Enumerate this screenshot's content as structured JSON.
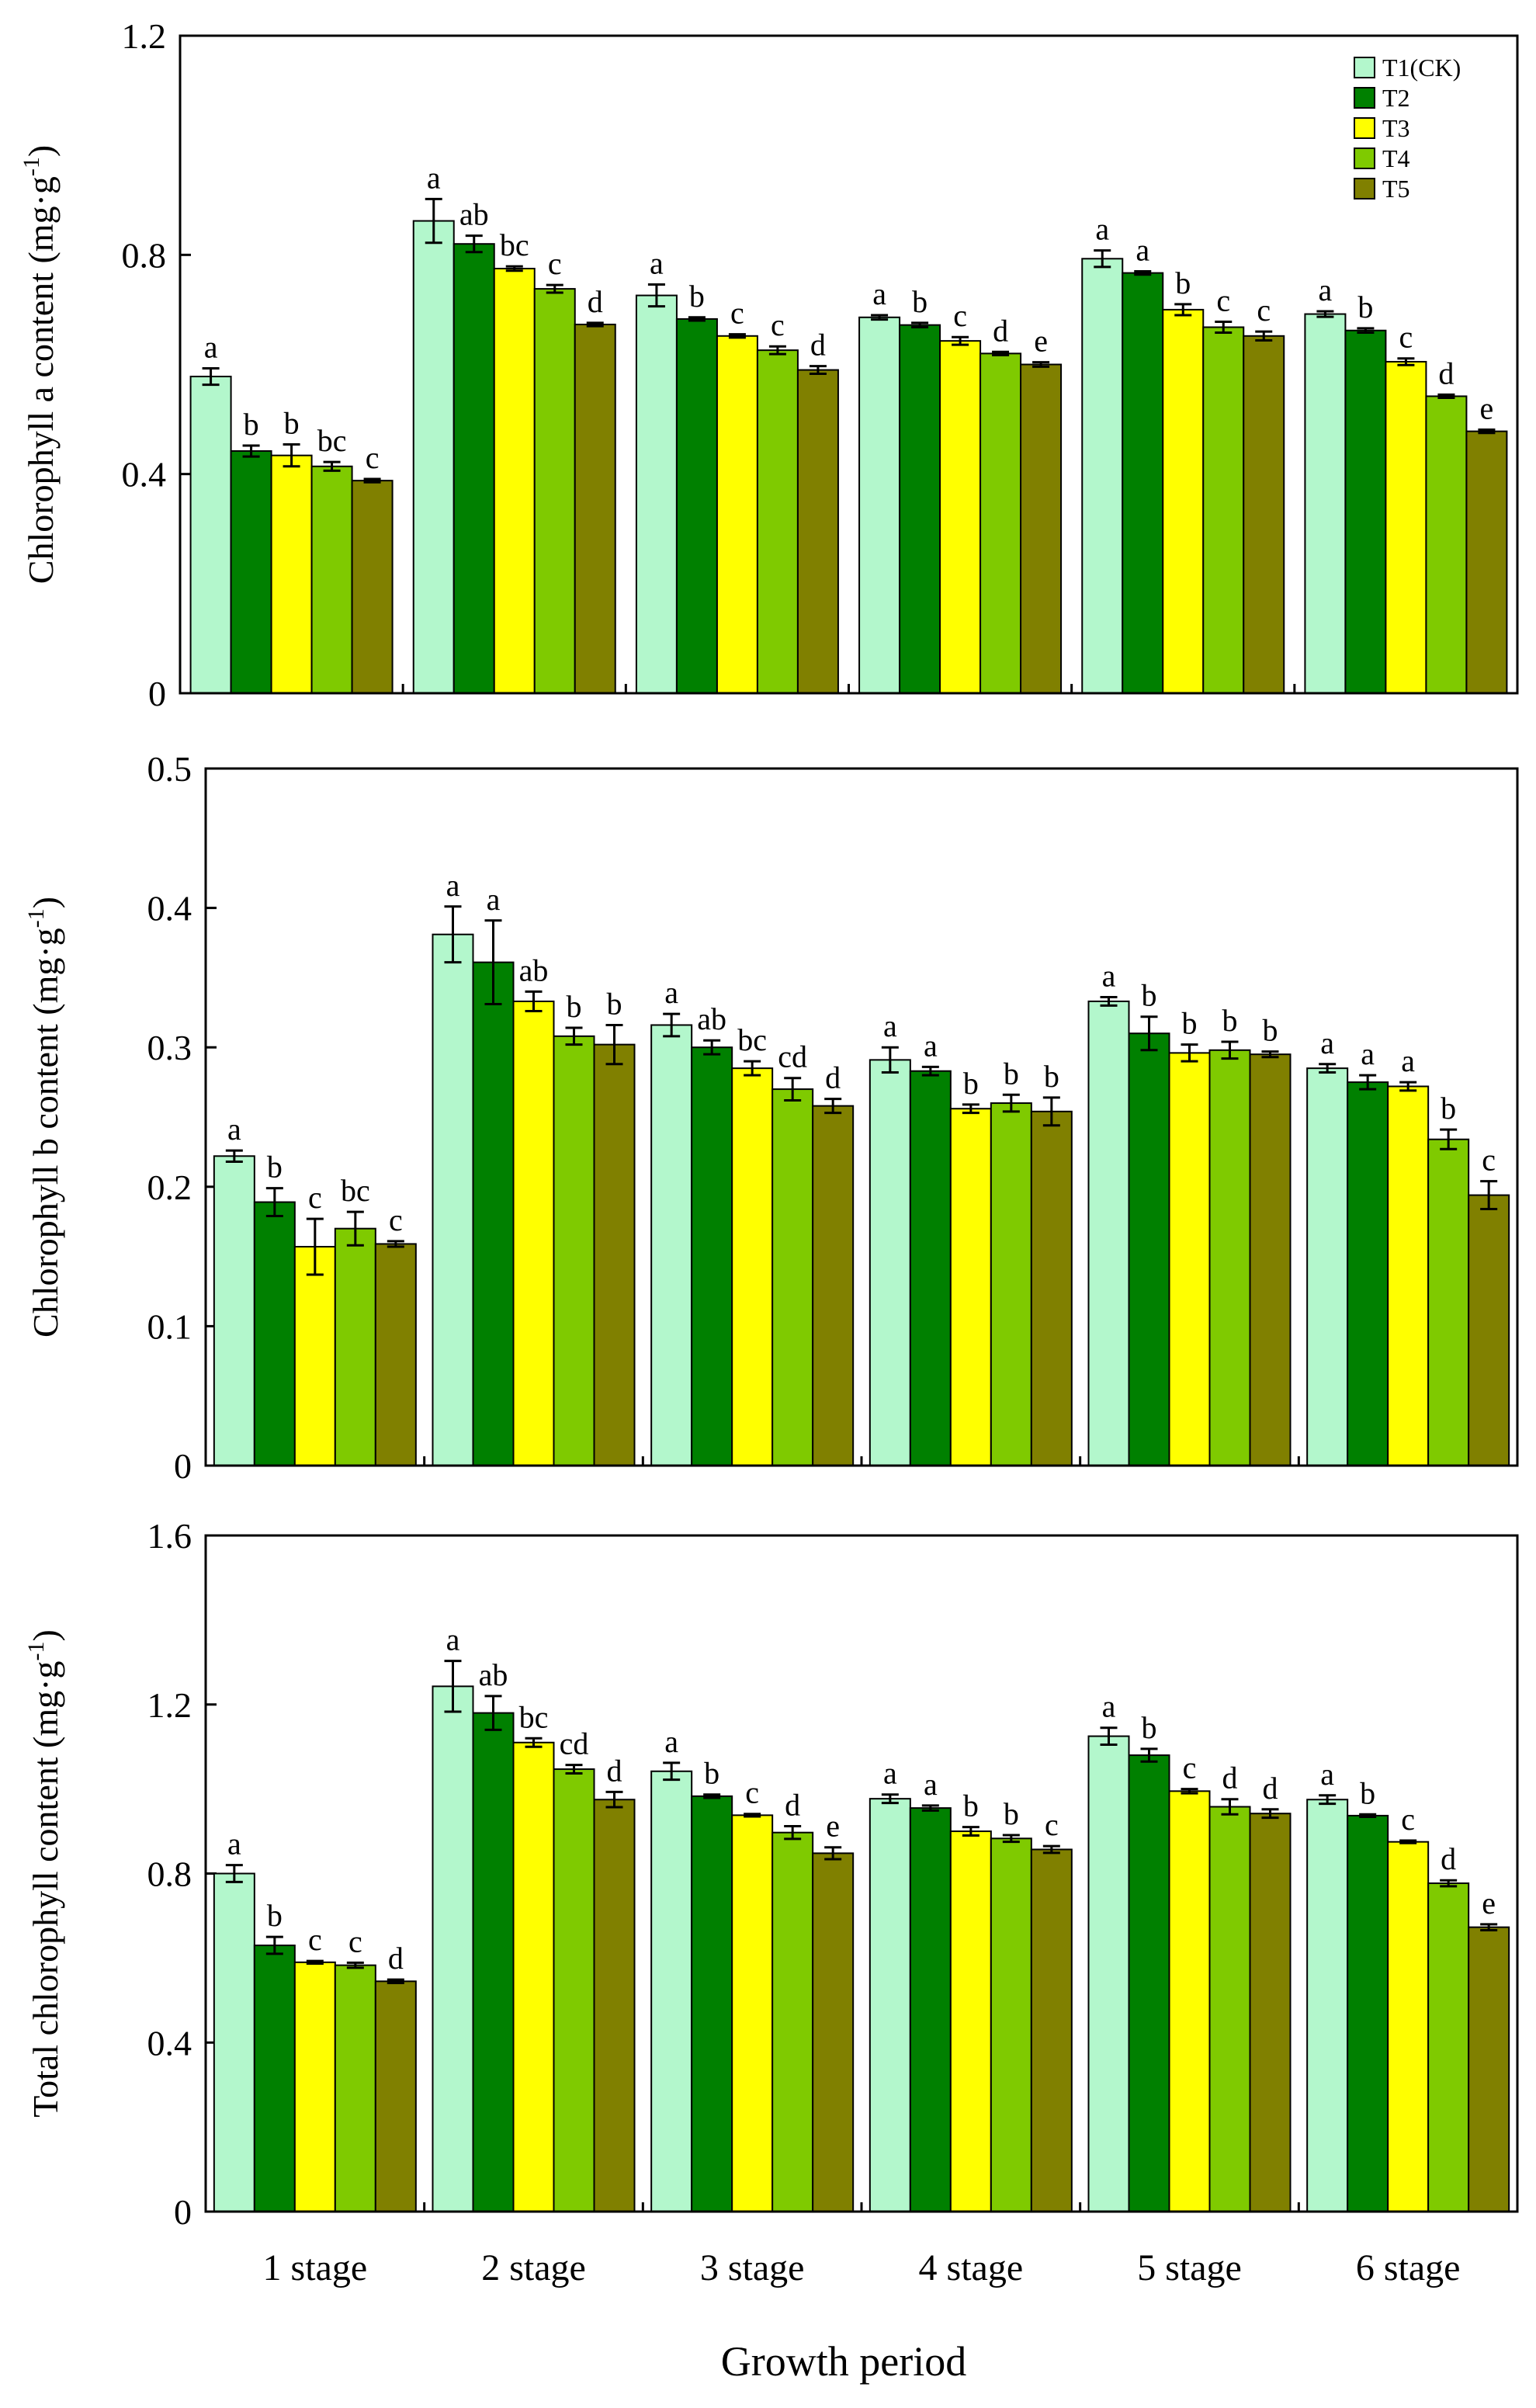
{
  "colors": {
    "T1(CK)": "#b3f7cc",
    "T2": "#008000",
    "T3": "#ffff00",
    "T4": "#7fca00",
    "T5": "#808000",
    "axis": "#000000",
    "error_bar": "#000000"
  },
  "x_axis_title": "Growth period",
  "chart_data": [
    {
      "type": "bar",
      "ylabel": "Chlorophyll a content",
      "yunit": "(mg·g-1)",
      "ylim": [
        0,
        1.2
      ],
      "yticks": [
        "0",
        "0.4",
        "0.8",
        "1.2"
      ],
      "legend": [
        "T1(CK)",
        "T2",
        "T3",
        "T4",
        "T5"
      ],
      "legend_position": "top-right",
      "categories": [
        "1 stage",
        "2 stage",
        "3 stage",
        "4 stage",
        "5 stage",
        "6 stage"
      ],
      "series": [
        {
          "name": "T1(CK)",
          "values": [
            0.578,
            0.862,
            0.726,
            0.686,
            0.793,
            0.692
          ],
          "errors": [
            0.015,
            0.04,
            0.02,
            0.004,
            0.015,
            0.005
          ],
          "labels": [
            "a",
            "a",
            "a",
            "a",
            "a",
            "a"
          ]
        },
        {
          "name": "T2",
          "values": [
            0.442,
            0.82,
            0.683,
            0.672,
            0.767,
            0.662
          ],
          "errors": [
            0.01,
            0.015,
            0.003,
            0.004,
            0.003,
            0.004
          ],
          "labels": [
            "b",
            "ab",
            "b",
            "b",
            "a",
            "b"
          ]
        },
        {
          "name": "T3",
          "values": [
            0.434,
            0.775,
            0.652,
            0.643,
            0.7,
            0.605
          ],
          "errors": [
            0.02,
            0.004,
            0.003,
            0.007,
            0.01,
            0.006
          ],
          "labels": [
            "b",
            "bc",
            "c",
            "c",
            "b",
            "c"
          ]
        },
        {
          "name": "T4",
          "values": [
            0.414,
            0.738,
            0.626,
            0.62,
            0.668,
            0.542
          ],
          "errors": [
            0.008,
            0.007,
            0.007,
            0.003,
            0.01,
            0.003
          ],
          "labels": [
            "bc",
            "c",
            "c",
            "d",
            "c",
            "d"
          ]
        },
        {
          "name": "T5",
          "values": [
            0.388,
            0.673,
            0.59,
            0.6,
            0.652,
            0.478
          ],
          "errors": [
            0.003,
            0.003,
            0.007,
            0.004,
            0.008,
            0.003
          ],
          "labels": [
            "c",
            "d",
            "d",
            "e",
            "c",
            "e"
          ]
        }
      ]
    },
    {
      "type": "bar",
      "ylabel": "Chlorophyll b content",
      "yunit": "(mg·g-1)",
      "ylim": [
        0,
        0.5
      ],
      "yticks": [
        "0",
        "0.1",
        "0.2",
        "0.3",
        "0.4",
        "0.5"
      ],
      "categories": [
        "1 stage",
        "2 stage",
        "3 stage",
        "4 stage",
        "5 stage",
        "6 stage"
      ],
      "series": [
        {
          "name": "T1(CK)",
          "values": [
            0.222,
            0.381,
            0.316,
            0.291,
            0.333,
            0.285
          ],
          "errors": [
            0.004,
            0.02,
            0.008,
            0.009,
            0.003,
            0.003
          ],
          "labels": [
            "a",
            "a",
            "a",
            "a",
            "a",
            "a"
          ]
        },
        {
          "name": "T2",
          "values": [
            0.189,
            0.361,
            0.3,
            0.283,
            0.31,
            0.275
          ],
          "errors": [
            0.01,
            0.03,
            0.005,
            0.003,
            0.012,
            0.005
          ],
          "labels": [
            "b",
            "a",
            "ab",
            "a",
            "b",
            "a"
          ]
        },
        {
          "name": "T3",
          "values": [
            0.157,
            0.333,
            0.285,
            0.256,
            0.296,
            0.272
          ],
          "errors": [
            0.02,
            0.007,
            0.005,
            0.003,
            0.006,
            0.003
          ],
          "labels": [
            "c",
            "ab",
            "bc",
            "b",
            "b",
            "a"
          ]
        },
        {
          "name": "T4",
          "values": [
            0.17,
            0.308,
            0.27,
            0.26,
            0.298,
            0.234
          ],
          "errors": [
            0.012,
            0.006,
            0.008,
            0.006,
            0.006,
            0.007
          ],
          "labels": [
            "bc",
            "b",
            "cd",
            "b",
            "b",
            "b"
          ]
        },
        {
          "name": "T5",
          "values": [
            0.159,
            0.302,
            0.258,
            0.254,
            0.295,
            0.194
          ],
          "errors": [
            0.002,
            0.014,
            0.005,
            0.01,
            0.002,
            0.01
          ],
          "labels": [
            "c",
            "b",
            "d",
            "b",
            "b",
            "c"
          ]
        }
      ]
    },
    {
      "type": "bar",
      "ylabel": "Total chlorophyll content",
      "yunit": "(mg·g-1)",
      "ylim": [
        0,
        1.6
      ],
      "yticks": [
        "0",
        "0.4",
        "0.8",
        "1.2",
        "1.6"
      ],
      "xlabel": "Growth period",
      "categories": [
        "1 stage",
        "2 stage",
        "3 stage",
        "4 stage",
        "5 stage",
        "6 stage"
      ],
      "series": [
        {
          "name": "T1(CK)",
          "values": [
            0.8,
            1.243,
            1.042,
            0.977,
            1.125,
            0.975
          ],
          "errors": [
            0.02,
            0.06,
            0.02,
            0.01,
            0.02,
            0.01
          ],
          "labels": [
            "a",
            "a",
            "a",
            "a",
            "a",
            "a"
          ]
        },
        {
          "name": "T2",
          "values": [
            0.63,
            1.18,
            0.983,
            0.955,
            1.08,
            0.937
          ],
          "errors": [
            0.02,
            0.04,
            0.004,
            0.006,
            0.015,
            0.003
          ],
          "labels": [
            "b",
            "ab",
            "b",
            "a",
            "b",
            "b"
          ]
        },
        {
          "name": "T3",
          "values": [
            0.59,
            1.11,
            0.938,
            0.9,
            0.995,
            0.875
          ],
          "errors": [
            0.003,
            0.01,
            0.003,
            0.01,
            0.005,
            0.003
          ],
          "labels": [
            "c",
            "bc",
            "c",
            "b",
            "c",
            "c"
          ]
        },
        {
          "name": "T4",
          "values": [
            0.583,
            1.047,
            0.897,
            0.883,
            0.958,
            0.777
          ],
          "errors": [
            0.006,
            0.01,
            0.015,
            0.008,
            0.018,
            0.007
          ],
          "labels": [
            "c",
            "cd",
            "d",
            "b",
            "d",
            "d"
          ]
        },
        {
          "name": "T5",
          "values": [
            0.545,
            0.975,
            0.848,
            0.857,
            0.942,
            0.673
          ],
          "errors": [
            0.004,
            0.018,
            0.014,
            0.008,
            0.01,
            0.007
          ],
          "labels": [
            "d",
            "d",
            "e",
            "c",
            "d",
            "e"
          ]
        }
      ]
    }
  ]
}
